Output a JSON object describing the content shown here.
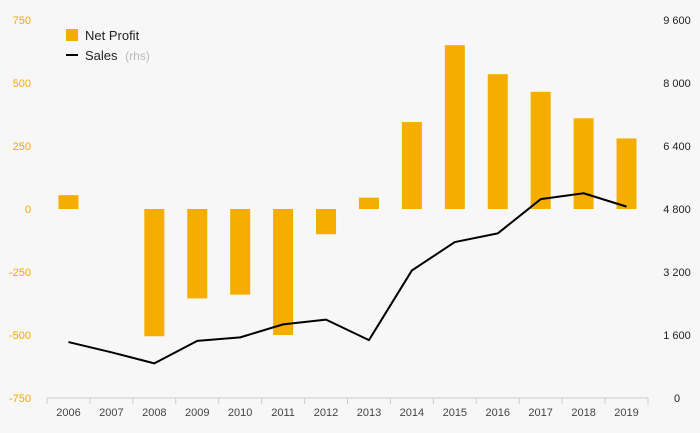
{
  "chart_data": {
    "type": "bar+line",
    "categories": [
      "2006",
      "2007",
      "2008",
      "2009",
      "2010",
      "2011",
      "2012",
      "2013",
      "2014",
      "2015",
      "2016",
      "2017",
      "2018",
      "2019"
    ],
    "series": [
      {
        "name": "Net Profit",
        "type": "bar",
        "axis": "left",
        "color": "#f5ae00",
        "values": [
          55,
          null,
          -505,
          -355,
          -340,
          -500,
          -100,
          45,
          345,
          650,
          535,
          465,
          360,
          280
        ]
      },
      {
        "name": "Sales",
        "name_suffix": "(rhs)",
        "type": "line",
        "axis": "right",
        "color": "#000000",
        "values": [
          1420,
          1160,
          880,
          1450,
          1540,
          1870,
          1990,
          1470,
          3240,
          3960,
          4180,
          5050,
          5200,
          4860
        ]
      }
    ],
    "y_left": {
      "range": [
        -750,
        750
      ],
      "ticks": [
        750,
        500,
        250,
        0,
        -250,
        -500,
        -750
      ],
      "tick_labels": [
        "750",
        "500",
        "250",
        "0",
        "-250",
        "-500",
        "-750"
      ]
    },
    "y_right": {
      "range": [
        0,
        9600
      ],
      "ticks": [
        9600,
        8000,
        6400,
        4800,
        3200,
        1600,
        0
      ],
      "tick_labels": [
        "9 600",
        "8 000",
        "6 400",
        "4 800",
        "3 200",
        "1 600",
        "0"
      ]
    },
    "legend_position": "top-left",
    "grid": false
  },
  "colors": {
    "background": "#f7f7f7",
    "left_axis_text": "#f5a800",
    "right_axis_text": "#222222",
    "axis_line": "#cccccc"
  }
}
